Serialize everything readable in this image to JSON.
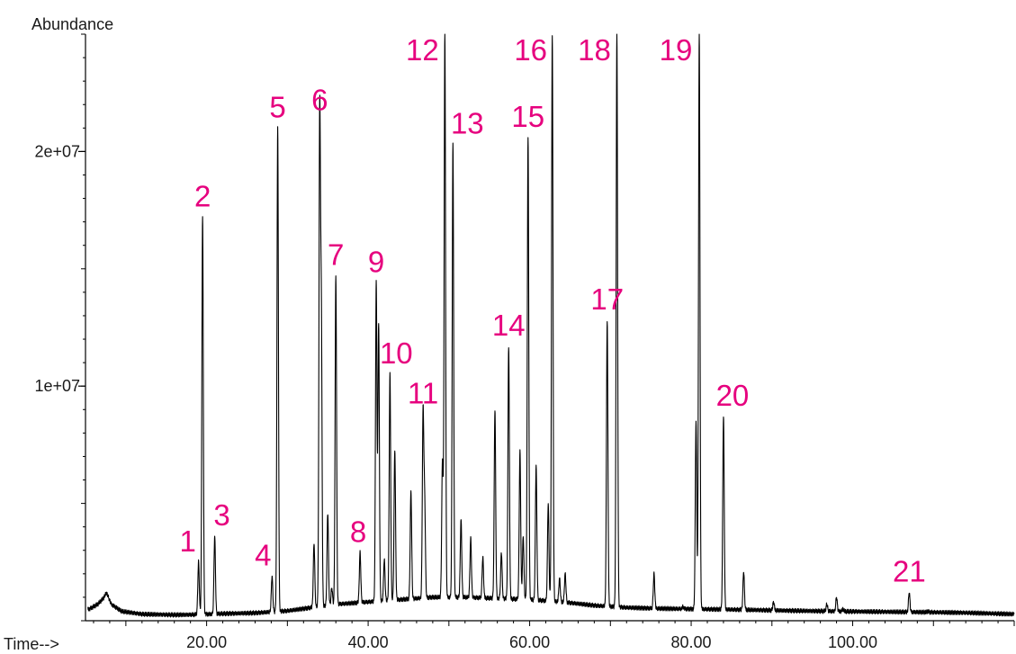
{
  "chart_data": {
    "type": "line",
    "title": "",
    "ylabel": "Abundance",
    "xlabel": "Time-->",
    "xlim": [
      5.0,
      120.0
    ],
    "ylim": [
      0,
      25000000
    ],
    "x_ticks": [
      20,
      40,
      60,
      80,
      100
    ],
    "x_tick_labels": [
      "20.00",
      "40.00",
      "60.00",
      "80.00",
      "100.00"
    ],
    "y_ticks": [
      10000000,
      20000000
    ],
    "y_tick_labels": [
      "1e+07",
      "2e+07"
    ],
    "grid": false,
    "line_color": "#000000",
    "label_color": "#e6007e",
    "baseline": 250000,
    "background_points": [
      [
        5.5,
        500000
      ],
      [
        6.5,
        700000
      ],
      [
        7.2,
        950000
      ],
      [
        7.6,
        1200000
      ],
      [
        8.2,
        700000
      ],
      [
        9.5,
        400000
      ],
      [
        12,
        280000
      ],
      [
        16,
        250000
      ],
      [
        18.5,
        260000
      ],
      [
        22,
        300000
      ],
      [
        26,
        330000
      ],
      [
        30,
        420000
      ],
      [
        33,
        560000
      ],
      [
        36,
        700000
      ],
      [
        40,
        800000
      ],
      [
        44,
        900000
      ],
      [
        48,
        1000000
      ],
      [
        52,
        1000000
      ],
      [
        56,
        950000
      ],
      [
        60,
        900000
      ],
      [
        64,
        800000
      ],
      [
        68,
        650000
      ],
      [
        72,
        560000
      ],
      [
        76,
        520000
      ],
      [
        80,
        500000
      ],
      [
        86,
        470000
      ],
      [
        92,
        430000
      ],
      [
        98,
        400000
      ],
      [
        104,
        380000
      ],
      [
        110,
        360000
      ],
      [
        114,
        340000
      ],
      [
        118,
        300000
      ],
      [
        120,
        280000
      ]
    ],
    "peaks": [
      {
        "label": "1",
        "rt": 19.0,
        "abundance": 2500000
      },
      {
        "label": "2",
        "rt": 19.5,
        "abundance": 17200000
      },
      {
        "label": "3",
        "rt": 21.0,
        "abundance": 3600000
      },
      {
        "label": "4",
        "rt": 28.1,
        "abundance": 1900000
      },
      {
        "label": "5",
        "rt": 28.8,
        "abundance": 21000000
      },
      {
        "label": "6",
        "rt": 34.0,
        "abundance": 21300000
      },
      {
        "label": "7",
        "rt": 36.0,
        "abundance": 14700000
      },
      {
        "label": "8",
        "rt": 39.0,
        "abundance": 2900000
      },
      {
        "label": "9",
        "rt": 41.0,
        "abundance": 14400000
      },
      {
        "label": "10",
        "rt": 42.7,
        "abundance": 10500000
      },
      {
        "label": "11",
        "rt": 46.8,
        "abundance": 8800000
      },
      {
        "label": "12",
        "rt": 49.5,
        "abundance": 25000000
      },
      {
        "label": "13",
        "rt": 50.5,
        "abundance": 20300000
      },
      {
        "label": "14",
        "rt": 57.4,
        "abundance": 11700000
      },
      {
        "label": "15",
        "rt": 59.8,
        "abundance": 20600000
      },
      {
        "label": "16",
        "rt": 62.8,
        "abundance": 25000000
      },
      {
        "label": "17",
        "rt": 69.6,
        "abundance": 12800000
      },
      {
        "label": "18",
        "rt": 70.8,
        "abundance": 25000000
      },
      {
        "label": "19",
        "rt": 81.0,
        "abundance": 25000000
      },
      {
        "label": "20",
        "rt": 84.0,
        "abundance": 8700000
      },
      {
        "label": "21",
        "rt": 107.0,
        "abundance": 1200000
      }
    ],
    "minor_peaks": [
      {
        "rt": 33.3,
        "abundance": 3300000
      },
      {
        "rt": 34.2,
        "abundance": 12800000
      },
      {
        "rt": 35.0,
        "abundance": 4600000
      },
      {
        "rt": 35.5,
        "abundance": 1400000
      },
      {
        "rt": 41.3,
        "abundance": 12700000
      },
      {
        "rt": 42.0,
        "abundance": 2600000
      },
      {
        "rt": 43.3,
        "abundance": 7300000
      },
      {
        "rt": 45.3,
        "abundance": 5500000
      },
      {
        "rt": 47.0,
        "abundance": 5000000
      },
      {
        "rt": 49.2,
        "abundance": 6800000
      },
      {
        "rt": 51.5,
        "abundance": 4300000
      },
      {
        "rt": 52.7,
        "abundance": 3500000
      },
      {
        "rt": 54.2,
        "abundance": 2700000
      },
      {
        "rt": 55.7,
        "abundance": 9000000
      },
      {
        "rt": 56.5,
        "abundance": 2900000
      },
      {
        "rt": 58.8,
        "abundance": 7200000
      },
      {
        "rt": 59.2,
        "abundance": 3600000
      },
      {
        "rt": 60.8,
        "abundance": 6600000
      },
      {
        "rt": 62.3,
        "abundance": 5000000
      },
      {
        "rt": 63.7,
        "abundance": 1800000
      },
      {
        "rt": 64.4,
        "abundance": 2000000
      },
      {
        "rt": 75.4,
        "abundance": 2000000
      },
      {
        "rt": 79.0,
        "abundance": 600000
      },
      {
        "rt": 80.6,
        "abundance": 8500000
      },
      {
        "rt": 86.5,
        "abundance": 2100000
      },
      {
        "rt": 90.2,
        "abundance": 800000
      },
      {
        "rt": 96.8,
        "abundance": 700000
      },
      {
        "rt": 98.0,
        "abundance": 1000000
      },
      {
        "rt": 98.8,
        "abundance": 500000
      },
      {
        "rt": 109.3,
        "abundance": 400000
      }
    ]
  }
}
